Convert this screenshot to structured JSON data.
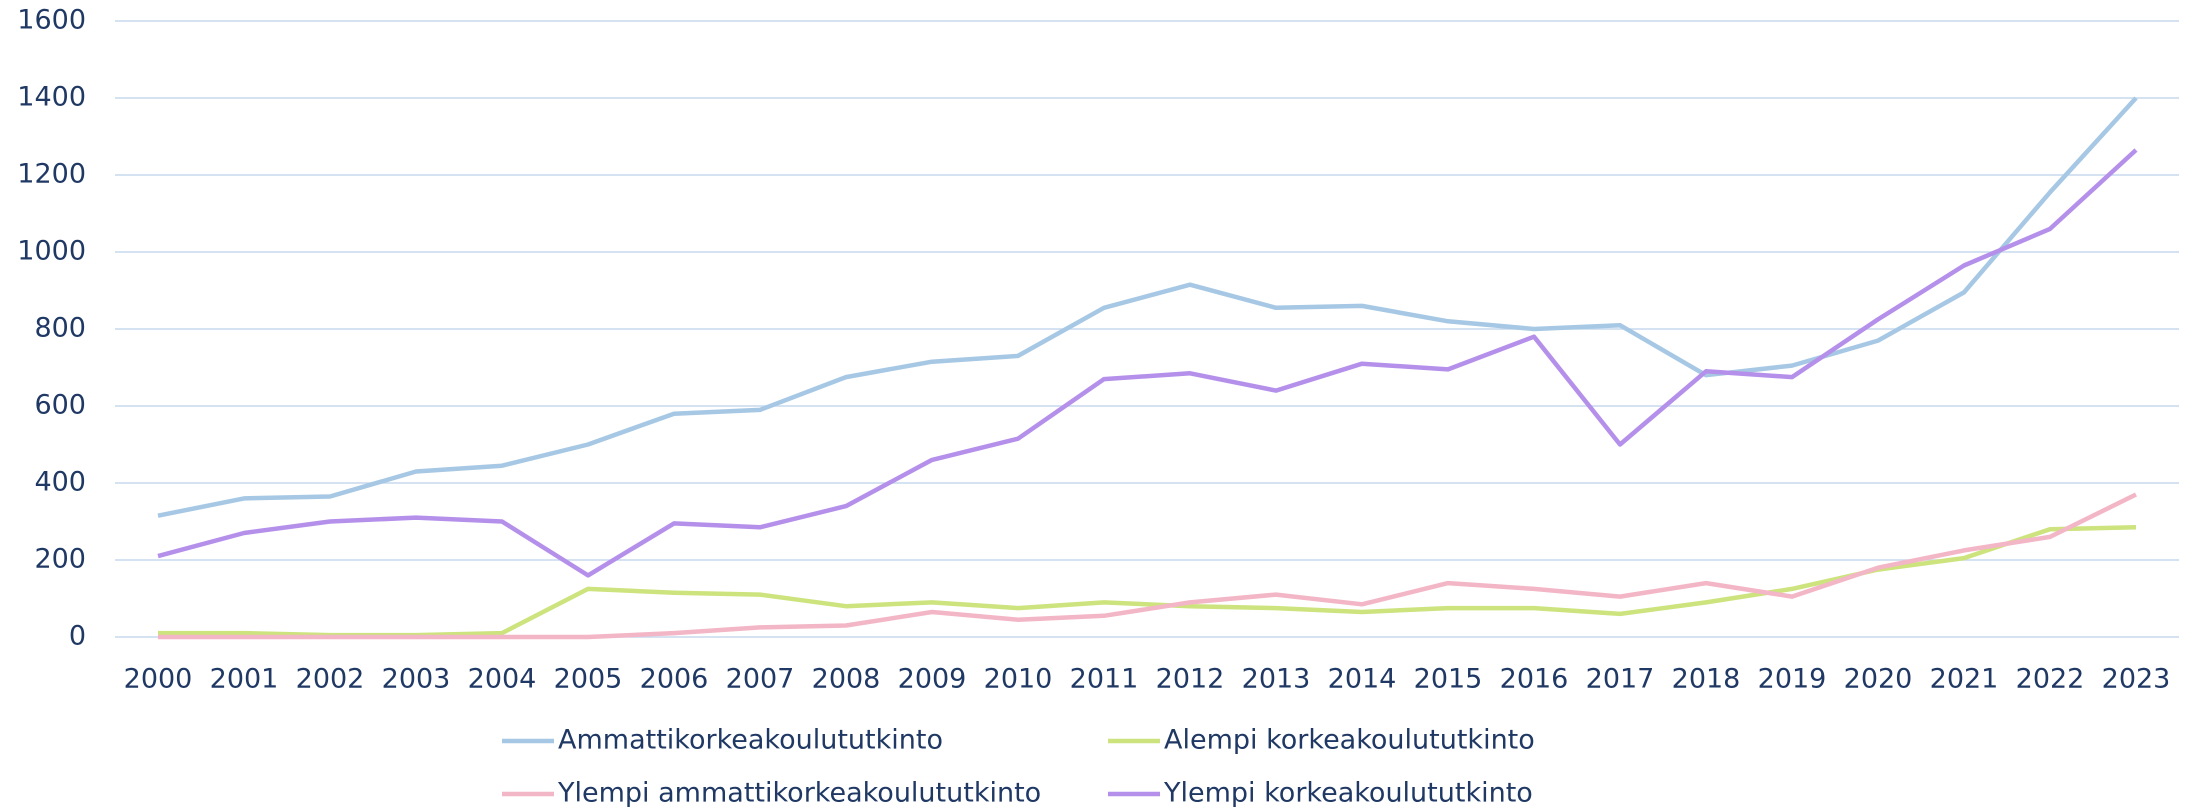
{
  "chart_data": {
    "type": "line",
    "categories": [
      "2000",
      "2001",
      "2002",
      "2003",
      "2004",
      "2005",
      "2006",
      "2007",
      "2008",
      "2009",
      "2010",
      "2011",
      "2012",
      "2013",
      "2014",
      "2015",
      "2016",
      "2017",
      "2018",
      "2019",
      "2020",
      "2021",
      "2022",
      "2023"
    ],
    "series": [
      {
        "name": "Ammattikorkeakoulututkinto",
        "color": "#a6c8e4",
        "values": [
          315,
          360,
          365,
          430,
          445,
          500,
          580,
          590,
          675,
          715,
          730,
          855,
          915,
          855,
          860,
          820,
          800,
          810,
          680,
          705,
          770,
          895,
          1155,
          1400
        ]
      },
      {
        "name": "Alempi korkeakoulututkinto",
        "color": "#cde37e",
        "values": [
          10,
          10,
          5,
          5,
          10,
          125,
          115,
          110,
          80,
          90,
          75,
          90,
          80,
          75,
          65,
          75,
          75,
          60,
          90,
          125,
          175,
          205,
          280,
          285
        ]
      },
      {
        "name": "Ylempi ammattikorkeakoulututkinto",
        "color": "#f3b6c6",
        "values": [
          0,
          0,
          0,
          0,
          0,
          0,
          10,
          25,
          30,
          65,
          45,
          55,
          90,
          110,
          85,
          140,
          125,
          105,
          140,
          105,
          180,
          225,
          260,
          370
        ]
      },
      {
        "name": "Ylempi korkeakoulututkinto",
        "color": "#b590ea",
        "values": [
          210,
          270,
          300,
          310,
          300,
          160,
          295,
          285,
          340,
          460,
          515,
          670,
          685,
          640,
          710,
          695,
          780,
          500,
          690,
          675,
          825,
          965,
          1060,
          1265
        ]
      }
    ],
    "ylim": [
      0,
      1600
    ],
    "yticks": [
      0,
      200,
      400,
      600,
      800,
      1000,
      1200,
      1400,
      1600
    ],
    "grid": true
  }
}
